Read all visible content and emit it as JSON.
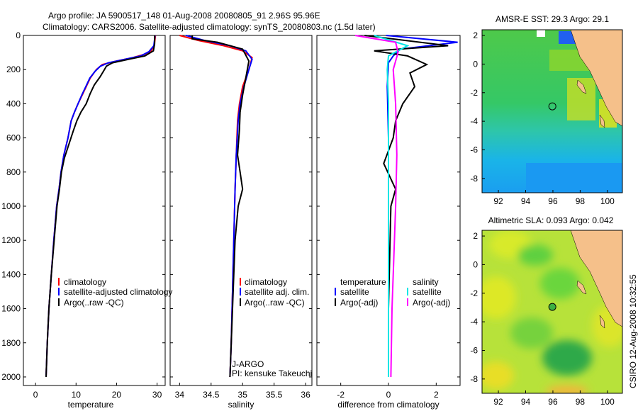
{
  "header": {
    "line1": "Argo profile: JA 5900517_148 01-Aug-2008 20080805_91 2.96S 95.96E",
    "line2": "Climatology: CARS2006. Satellite-adjusted climatology: synTS_20080803.nc (1.5d later)"
  },
  "side_note": "CSIRO 12-Aug-2008 10:32:55",
  "colors": {
    "climatology": "#ff0000",
    "satellite": "#0000ff",
    "argo": "#000000",
    "salinity_satellite": "#00e5e5",
    "salinity_argo": "#ff00ff",
    "land": "#f5c08a"
  },
  "chart_data": [
    {
      "id": "temperature",
      "type": "line",
      "xlabel": "temperature",
      "ylabel": "",
      "xlim": [
        -3,
        32
      ],
      "ylim": [
        2050,
        0
      ],
      "xticks": [
        0,
        10,
        20,
        30
      ],
      "yticks": [
        0,
        200,
        400,
        600,
        800,
        1000,
        1200,
        1400,
        1600,
        1800,
        2000
      ],
      "legend": [
        "climatology",
        "satellite-adjusted climatology",
        "Argo(..raw -QC)"
      ],
      "series": [
        {
          "name": "climatology",
          "color": "#ff0000",
          "x": [
            29.6,
            29.3,
            28.5,
            27.0,
            24.0,
            20.0,
            16.5,
            15.0,
            13.5,
            12.5,
            11.5,
            10.5,
            9.6,
            8.8,
            8.0,
            7.0,
            6.3,
            5.8,
            5.2,
            4.5,
            3.9,
            3.3,
            2.9,
            2.6
          ],
          "y": [
            0,
            60,
            90,
            110,
            130,
            150,
            170,
            200,
            250,
            300,
            350,
            400,
            450,
            500,
            600,
            700,
            800,
            900,
            1000,
            1200,
            1400,
            1600,
            1800,
            2000
          ]
        },
        {
          "name": "satellite-adjusted climatology",
          "color": "#0000ff",
          "x": [
            29.5,
            29.2,
            28.0,
            26.0,
            22.0,
            18.0,
            16.0,
            14.7,
            13.4,
            12.4,
            11.4,
            10.5,
            9.6,
            8.8,
            8.0,
            7.0,
            6.3,
            5.8,
            5.2,
            4.5,
            3.9,
            3.3,
            2.9,
            2.6
          ],
          "y": [
            0,
            60,
            95,
            120,
            140,
            160,
            180,
            210,
            250,
            300,
            350,
            400,
            450,
            500,
            600,
            700,
            800,
            900,
            1000,
            1200,
            1400,
            1600,
            1800,
            2000
          ]
        },
        {
          "name": "Argo(..raw -QC)",
          "color": "#000000",
          "x": [
            29.4,
            29.4,
            29.1,
            27.0,
            23.0,
            19.0,
            17.5,
            17.0,
            16.0,
            14.5,
            13.5,
            12.5,
            11.2,
            10.2,
            9.3,
            8.2,
            7.1,
            6.4,
            5.9,
            5.3,
            4.6,
            3.9,
            3.3,
            2.9,
            2.6
          ],
          "y": [
            0,
            50,
            90,
            120,
            140,
            160,
            180,
            200,
            240,
            290,
            340,
            400,
            450,
            500,
            560,
            640,
            720,
            800,
            900,
            1000,
            1200,
            1400,
            1600,
            1800,
            2000
          ]
        }
      ]
    },
    {
      "id": "salinity",
      "type": "line",
      "xlabel": "salinity",
      "ylabel": "",
      "xlim": [
        33.85,
        36.1
      ],
      "ylim": [
        2050,
        0
      ],
      "xticks": [
        34,
        34.5,
        35,
        35.5,
        36
      ],
      "xticklabels": [
        "34",
        "34.5",
        "35",
        "35.5",
        "36"
      ],
      "legend": [
        "climatology",
        "satellite adj. clim.",
        "Argo(..raw -QC)"
      ],
      "annotation": [
        "J-ARGO",
        "PI: kensuke Takeuchi"
      ],
      "series": [
        {
          "name": "climatology",
          "color": "#ff0000",
          "x": [
            34.0,
            34.3,
            34.7,
            35.0,
            35.15,
            35.1,
            35.0,
            34.95,
            34.92,
            34.9,
            34.88,
            34.86,
            34.84,
            34.82,
            34.8
          ],
          "y": [
            0,
            30,
            60,
            90,
            130,
            200,
            300,
            400,
            500,
            700,
            900,
            1200,
            1500,
            1800,
            2000
          ]
        },
        {
          "name": "satellite adj. clim.",
          "color": "#0000ff",
          "x": [
            34.1,
            34.4,
            34.8,
            35.05,
            35.15,
            35.1,
            35.02,
            34.96,
            34.93,
            34.9,
            34.88,
            34.86,
            34.84,
            34.82,
            34.8
          ],
          "y": [
            0,
            30,
            60,
            90,
            140,
            200,
            300,
            400,
            500,
            700,
            900,
            1200,
            1500,
            1800,
            2000
          ]
        },
        {
          "name": "Argo(..raw -QC)",
          "color": "#000000",
          "x": [
            34.2,
            34.2,
            34.6,
            35.0,
            35.1,
            35.05,
            35.0,
            34.96,
            34.95,
            34.92,
            34.96,
            35.0,
            34.93,
            34.88,
            34.86,
            34.84,
            34.82,
            34.8
          ],
          "y": [
            0,
            20,
            40,
            80,
            150,
            250,
            350,
            450,
            550,
            700,
            800,
            900,
            1000,
            1200,
            1400,
            1600,
            1800,
            2000
          ]
        }
      ]
    },
    {
      "id": "difference",
      "type": "line",
      "xlabel": "difference from climatology",
      "ylabel": "",
      "xlim": [
        -3,
        3
      ],
      "ylim": [
        2050,
        0
      ],
      "xticks": [
        -2,
        0,
        2
      ],
      "legend_left_title": "temperature",
      "legend_right_title": "salinity",
      "legend_left": [
        "satellite",
        "Argo(-adj)"
      ],
      "legend_right": [
        "satellite",
        "Argo(-adj)"
      ],
      "series": [
        {
          "name": "temperature satellite",
          "color": "#0000ff",
          "x": [
            -0.1,
            2.9,
            0.5,
            0.2,
            0.0,
            -0.05,
            0.0,
            0.0,
            0.0,
            0.0,
            0.0
          ],
          "y": [
            0,
            40,
            80,
            120,
            160,
            300,
            600,
            900,
            1200,
            1600,
            2000
          ]
        },
        {
          "name": "temperature Argo(-adj)",
          "color": "#000000",
          "x": [
            -1.0,
            2.5,
            -0.6,
            0.8,
            1.6,
            0.9,
            1.1,
            0.6,
            0.3,
            0.2,
            -0.2,
            0.3,
            0.1,
            0.05,
            0.0,
            0.0
          ],
          "y": [
            0,
            60,
            90,
            120,
            170,
            220,
            300,
            400,
            500,
            600,
            750,
            900,
            1000,
            1300,
            1600,
            2000
          ]
        },
        {
          "name": "salinity satellite",
          "color": "#00e5e5",
          "x": [
            -0.6,
            0.8,
            0.0,
            -0.05,
            0.0,
            0.0,
            0.0,
            0.0,
            0.0,
            0.0
          ],
          "y": [
            0,
            60,
            120,
            200,
            400,
            700,
            1000,
            1400,
            1700,
            2000
          ]
        },
        {
          "name": "salinity Argo(-adj)",
          "color": "#ff00ff",
          "x": [
            -1.4,
            0.3,
            0.4,
            0.2,
            0.3,
            0.35,
            0.3,
            0.25,
            0.2,
            0.15,
            0.1
          ],
          "y": [
            0,
            40,
            100,
            200,
            400,
            700,
            1000,
            1200,
            1400,
            1600,
            2000
          ]
        }
      ]
    },
    {
      "id": "sst_map",
      "type": "heatmap",
      "title": "AMSR-E SST: 29.3 Argo: 29.1",
      "xlim": [
        90.8,
        101.1
      ],
      "ylim": [
        -9,
        2.4
      ],
      "xticks": [
        92,
        94,
        96,
        98,
        100
      ],
      "yticks": [
        2,
        0,
        -2,
        -4,
        -6,
        -8
      ],
      "marker": {
        "lon": 95.96,
        "lat": -2.96
      }
    },
    {
      "id": "sla_map",
      "type": "heatmap",
      "title": "Altimetric SLA: 0.093 Argo: 0.042",
      "xlim": [
        90.8,
        101.1
      ],
      "ylim": [
        -9,
        2.4
      ],
      "xticks": [
        92,
        94,
        96,
        98,
        100
      ],
      "yticks": [
        2,
        0,
        -2,
        -4,
        -6,
        -8
      ],
      "marker": {
        "lon": 95.96,
        "lat": -2.96
      }
    }
  ]
}
